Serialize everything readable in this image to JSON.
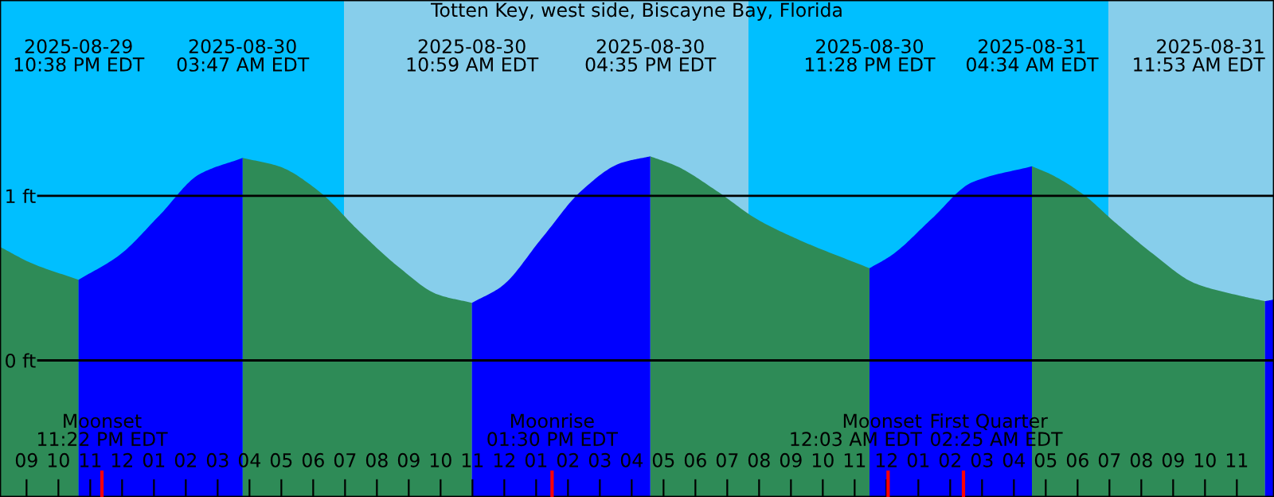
{
  "chart_data": {
    "type": "area",
    "title": "Totten Key, west side, Biscayne Bay, Florida",
    "x": [
      "2025-08-29T20:10",
      "2025-08-29T21:10",
      "2025-08-29T22:38",
      "2025-08-29T23:55",
      "2025-08-30T01:10",
      "2025-08-30T02:25",
      "2025-08-30T03:47",
      "2025-08-30T04:55",
      "2025-08-30T06:10",
      "2025-08-30T07:25",
      "2025-08-30T08:40",
      "2025-08-30T09:55",
      "2025-08-30T10:59",
      "2025-08-30T11:55",
      "2025-08-30T13:10",
      "2025-08-30T14:25",
      "2025-08-30T15:40",
      "2025-08-30T16:35",
      "2025-08-30T17:25",
      "2025-08-30T18:40",
      "2025-08-30T19:55",
      "2025-08-30T21:10",
      "2025-08-30T23:28",
      "2025-08-31T00:10",
      "2025-08-31T01:25",
      "2025-08-31T02:40",
      "2025-08-31T04:34",
      "2025-08-31T05:10",
      "2025-08-31T06:10",
      "2025-08-31T07:10",
      "2025-08-31T08:25",
      "2025-08-31T09:40",
      "2025-08-31T11:10",
      "2025-08-31T11:53",
      "2025-08-31T12:10"
    ],
    "series": [
      {
        "color": "#2e8b57",
        "values": [
          0.69,
          0.59,
          0.49,
          null,
          null,
          null,
          1.23,
          1.18,
          1.03,
          0.79,
          0.57,
          0.4,
          0.35,
          null,
          null,
          null,
          null,
          1.24,
          1.18,
          1.03,
          0.86,
          0.74,
          0.56,
          null,
          null,
          null,
          1.18,
          1.13,
          1.01,
          0.84,
          0.64,
          0.47,
          0.39,
          0.36,
          null
        ]
      },
      {
        "color": "#0000ff",
        "values": [
          null,
          null,
          0.49,
          0.64,
          0.88,
          1.13,
          1.23,
          null,
          null,
          null,
          null,
          null,
          0.35,
          0.45,
          0.74,
          1.03,
          1.2,
          1.24,
          null,
          null,
          null,
          null,
          0.56,
          0.64,
          0.86,
          1.08,
          1.18,
          null,
          null,
          null,
          null,
          null,
          null,
          0.36,
          0.37
        ]
      }
    ],
    "xlim": [
      "2025-08-29T20:10",
      "2025-08-31T12:10"
    ],
    "ylim": [
      -0.83,
      2.19
    ],
    "yticks": [
      {
        "value": 0,
        "label": "0 ft"
      },
      {
        "value": 1,
        "label": "1 ft"
      }
    ],
    "xticks": [
      {
        "value": "2025-08-29T21:00",
        "label": "09"
      },
      {
        "value": "2025-08-29T22:00",
        "label": "10"
      },
      {
        "value": "2025-08-29T23:00",
        "label": "11"
      },
      {
        "value": "2025-08-30T00:00",
        "label": "12"
      },
      {
        "value": "2025-08-30T01:00",
        "label": "01"
      },
      {
        "value": "2025-08-30T02:00",
        "label": "02"
      },
      {
        "value": "2025-08-30T03:00",
        "label": "03"
      },
      {
        "value": "2025-08-30T04:00",
        "label": "04"
      },
      {
        "value": "2025-08-30T05:00",
        "label": "05"
      },
      {
        "value": "2025-08-30T06:00",
        "label": "06"
      },
      {
        "value": "2025-08-30T07:00",
        "label": "07"
      },
      {
        "value": "2025-08-30T08:00",
        "label": "08"
      },
      {
        "value": "2025-08-30T09:00",
        "label": "09"
      },
      {
        "value": "2025-08-30T10:00",
        "label": "10"
      },
      {
        "value": "2025-08-30T11:00",
        "label": "11"
      },
      {
        "value": "2025-08-30T12:00",
        "label": "12"
      },
      {
        "value": "2025-08-30T13:00",
        "label": "01"
      },
      {
        "value": "2025-08-30T14:00",
        "label": "02"
      },
      {
        "value": "2025-08-30T15:00",
        "label": "03"
      },
      {
        "value": "2025-08-30T16:00",
        "label": "04"
      },
      {
        "value": "2025-08-30T17:00",
        "label": "05"
      },
      {
        "value": "2025-08-30T18:00",
        "label": "06"
      },
      {
        "value": "2025-08-30T19:00",
        "label": "07"
      },
      {
        "value": "2025-08-30T20:00",
        "label": "08"
      },
      {
        "value": "2025-08-30T21:00",
        "label": "09"
      },
      {
        "value": "2025-08-30T22:00",
        "label": "10"
      },
      {
        "value": "2025-08-30T23:00",
        "label": "11"
      },
      {
        "value": "2025-08-31T00:00",
        "label": "12"
      },
      {
        "value": "2025-08-31T01:00",
        "label": "01"
      },
      {
        "value": "2025-08-31T02:00",
        "label": "02"
      },
      {
        "value": "2025-08-31T03:00",
        "label": "03"
      },
      {
        "value": "2025-08-31T04:00",
        "label": "04"
      },
      {
        "value": "2025-08-31T05:00",
        "label": "05"
      },
      {
        "value": "2025-08-31T06:00",
        "label": "06"
      },
      {
        "value": "2025-08-31T07:00",
        "label": "07"
      },
      {
        "value": "2025-08-31T08:00",
        "label": "08"
      },
      {
        "value": "2025-08-31T09:00",
        "label": "09"
      },
      {
        "value": "2025-08-31T10:00",
        "label": "10"
      },
      {
        "value": "2025-08-31T11:00",
        "label": "11"
      }
    ],
    "grid": "y",
    "bands": [
      {
        "axis": "x",
        "from": "2025-08-29T20:10",
        "to": "2025-08-30T06:58",
        "color": "#00bfff"
      },
      {
        "axis": "x",
        "from": "2025-08-30T06:58",
        "to": "2025-08-30T19:40",
        "color": "#87ceeb"
      },
      {
        "axis": "x",
        "from": "2025-08-30T19:40",
        "to": "2025-08-31T06:58",
        "color": "#00bfff"
      },
      {
        "axis": "x",
        "from": "2025-08-31T06:58",
        "to": "2025-08-31T12:10",
        "color": "#87ceeb"
      }
    ],
    "ref_lines": [
      {
        "axis": "x",
        "value": "2025-08-29T23:22",
        "label": "Moonset\n11:22 PM EDT",
        "color": "#ff0000"
      },
      {
        "axis": "x",
        "value": "2025-08-30T13:30",
        "label": "Moonrise\n01:30 PM EDT",
        "color": "#ff0000"
      },
      {
        "axis": "x",
        "value": "2025-08-31T00:03",
        "label": "Moonset\n12:03 AM EDT",
        "color": "#ff0000"
      },
      {
        "axis": "x",
        "value": "2025-08-31T02:25",
        "label": "First Quarter\n02:25 AM EDT",
        "color": "#ff0000"
      }
    ],
    "x2lim": [
      "2025-08-29T20:10",
      "2025-08-31T12:10"
    ],
    "x2ticks": [
      {
        "value": "2025-08-29T22:38",
        "label": "2025-08-29\n10:38 PM EDT"
      },
      {
        "value": "2025-08-30T03:47",
        "label": "2025-08-30\n03:47 AM EDT"
      },
      {
        "value": "2025-08-30T10:59",
        "label": "2025-08-30\n10:59 AM EDT"
      },
      {
        "value": "2025-08-30T16:35",
        "label": "2025-08-30\n04:35 PM EDT"
      },
      {
        "value": "2025-08-30T23:28",
        "label": "2025-08-30\n11:28 PM EDT"
      },
      {
        "value": "2025-08-31T04:34",
        "label": "2025-08-31\n04:34 AM EDT"
      },
      {
        "value": "2025-08-31T11:53",
        "label": "2025-08-31\n11:53 AM EDT"
      }
    ]
  }
}
